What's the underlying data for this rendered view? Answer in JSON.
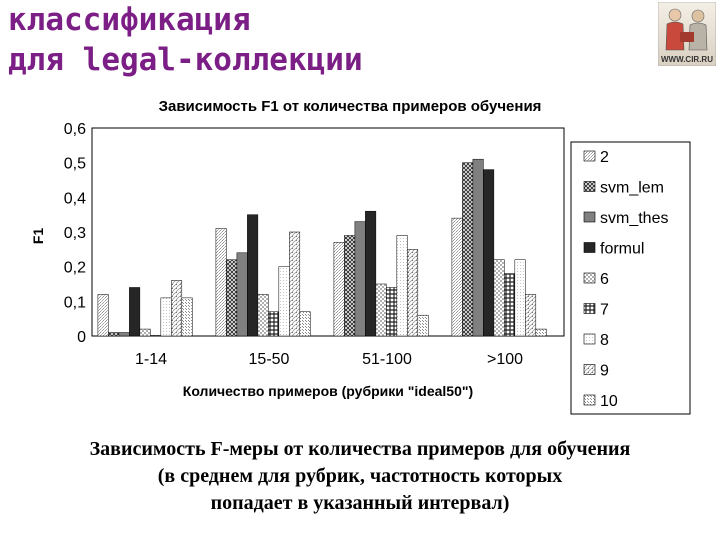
{
  "slide": {
    "title_lines": [
      "классификация",
      "для legal-коллекции"
    ],
    "caption_lines": [
      "Зависимость F-меры от количества примеров для обучения",
      "(в среднем для рубрик, частотность которых",
      "попадает в указанный интервал)"
    ]
  },
  "logo": {
    "label": "WWW.CIR.RU"
  },
  "chart_data": {
    "type": "bar",
    "title": "Зависимость F1 от количества примеров обучения",
    "xlabel": "Количество примеров (рубрики \"ideal50\")",
    "ylabel": "F1",
    "ylim": [
      0,
      0.6
    ],
    "yticks": [
      "0",
      "0,1",
      "0,2",
      "0,3",
      "0,4",
      "0,5",
      "0,6"
    ],
    "grid": false,
    "legend_position": "right",
    "categories": [
      "1-14",
      "15-50",
      "51-100",
      ">100"
    ],
    "series": [
      {
        "name": "2",
        "values": [
          0.12,
          0.31,
          0.27,
          0.34
        ]
      },
      {
        "name": "svm_lem",
        "values": [
          0.01,
          0.22,
          0.29,
          0.5
        ]
      },
      {
        "name": "svm_thes",
        "values": [
          0.01,
          0.24,
          0.33,
          0.51
        ]
      },
      {
        "name": "formul",
        "values": [
          0.14,
          0.35,
          0.36,
          0.48
        ]
      },
      {
        "name": "6",
        "values": [
          0.02,
          0.12,
          0.15,
          0.22
        ]
      },
      {
        "name": "7",
        "values": [
          0.0,
          0.07,
          0.14,
          0.18
        ]
      },
      {
        "name": "8",
        "values": [
          0.11,
          0.2,
          0.29,
          0.22
        ]
      },
      {
        "name": "9",
        "values": [
          0.16,
          0.3,
          0.25,
          0.12
        ]
      },
      {
        "name": "10",
        "values": [
          0.11,
          0.07,
          0.06,
          0.02
        ]
      }
    ]
  }
}
